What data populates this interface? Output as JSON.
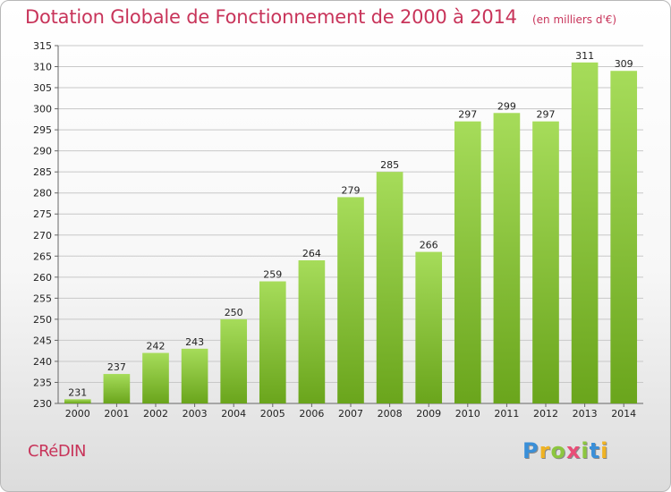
{
  "header": {
    "title": "Dotation Globale de Fonctionnement de 2000 à 2014",
    "subtitle": "(en milliers d'€)"
  },
  "footer": {
    "commune": "CRéDIN",
    "logo_letters": [
      {
        "char": "P",
        "color": "#3a8fd8"
      },
      {
        "char": "r",
        "color": "#f0b323"
      },
      {
        "char": "o",
        "color": "#8cc63f"
      },
      {
        "char": "x",
        "color": "#e94e77"
      },
      {
        "char": "i",
        "color": "#8cc63f"
      },
      {
        "char": "t",
        "color": "#3a8fd8"
      },
      {
        "char": "i",
        "color": "#f0b323"
      }
    ]
  },
  "chart_data": {
    "type": "bar",
    "title": "Dotation Globale de Fonctionnement de 2000 à 2014",
    "subtitle": "(en milliers d'€)",
    "categories": [
      "2000",
      "2001",
      "2002",
      "2003",
      "2004",
      "2005",
      "2006",
      "2007",
      "2008",
      "2009",
      "2010",
      "2011",
      "2012",
      "2013",
      "2014"
    ],
    "values": [
      231,
      237,
      242,
      243,
      250,
      259,
      264,
      279,
      285,
      266,
      297,
      299,
      297,
      311,
      309
    ],
    "ylim": [
      230,
      315
    ],
    "yticks": [
      230,
      235,
      240,
      245,
      250,
      255,
      260,
      265,
      270,
      275,
      280,
      285,
      290,
      295,
      300,
      305,
      310,
      315
    ],
    "grid": true,
    "bar_color_top": "#a6dc5a",
    "bar_color_bottom": "#6aa51c",
    "grid_color": "#c8c8c8",
    "xlabel": "",
    "ylabel": ""
  }
}
